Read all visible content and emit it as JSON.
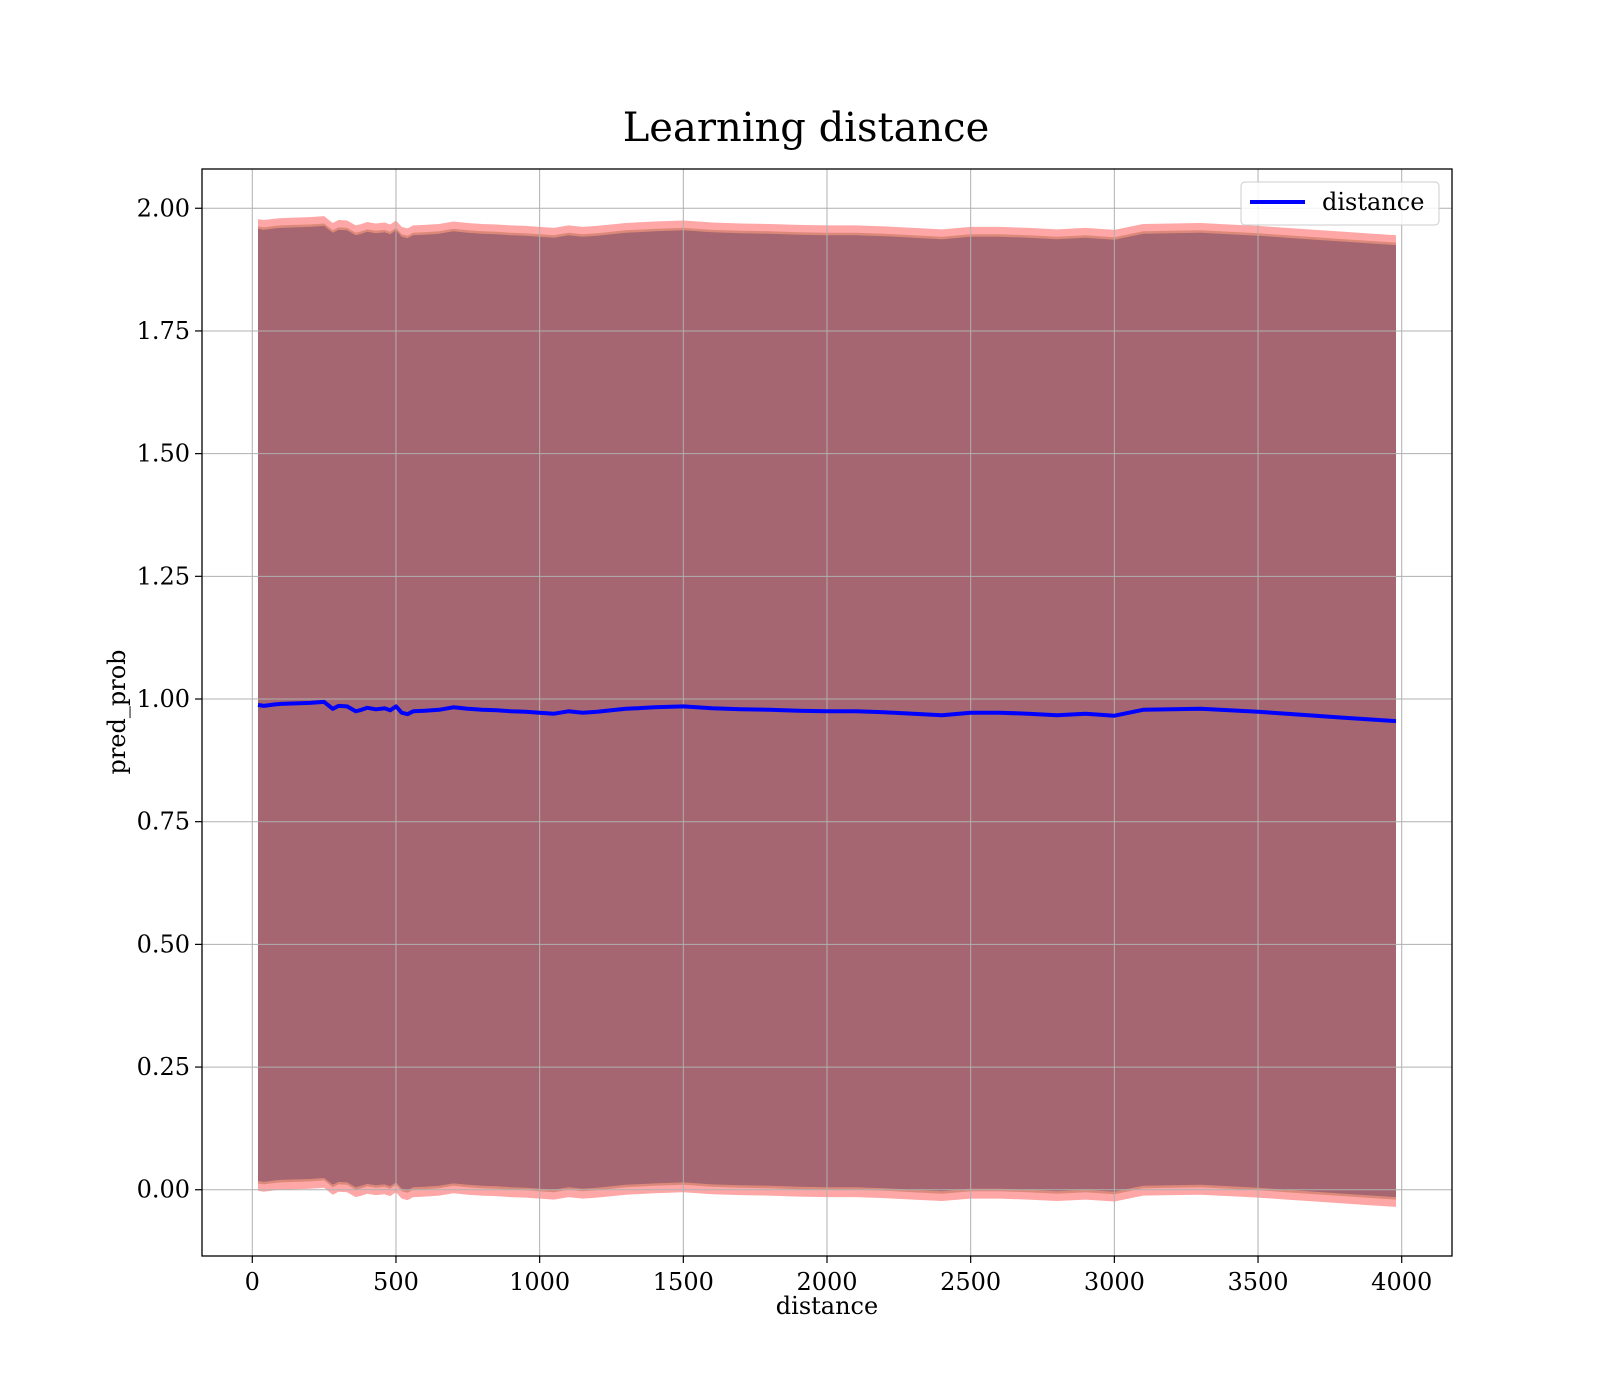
{
  "chart_data": {
    "type": "line",
    "title": "Learning distance",
    "xlabel": "distance",
    "ylabel": "pred_prob",
    "xlim": [
      -175,
      4175
    ],
    "ylim": [
      -0.135,
      2.08
    ],
    "grid": true,
    "legend_position": "top-right",
    "x_ticks": [
      0,
      500,
      1000,
      1500,
      2000,
      2500,
      3000,
      3500,
      4000
    ],
    "x_tick_labels": [
      "0",
      "500",
      "1000",
      "1500",
      "2000",
      "2500",
      "3000",
      "3500",
      "4000"
    ],
    "y_ticks": [
      0.0,
      0.25,
      0.5,
      0.75,
      1.0,
      1.25,
      1.5,
      1.75,
      2.0
    ],
    "y_tick_labels": [
      "0.00",
      "0.25",
      "0.50",
      "0.75",
      "1.00",
      "1.25",
      "1.50",
      "1.75",
      "2.00"
    ],
    "series": [
      {
        "name": "distance",
        "color": "#0000ff",
        "x": [
          20,
          40,
          80,
          100,
          150,
          200,
          250,
          280,
          300,
          330,
          360,
          380,
          400,
          430,
          460,
          480,
          500,
          520,
          540,
          560,
          600,
          650,
          700,
          750,
          800,
          850,
          900,
          950,
          1000,
          1050,
          1100,
          1150,
          1200,
          1300,
          1400,
          1500,
          1600,
          1700,
          1800,
          1900,
          2000,
          2100,
          2200,
          2300,
          2400,
          2500,
          2600,
          2700,
          2800,
          2900,
          3000,
          3100,
          3200,
          3300,
          3400,
          3500,
          3600,
          3700,
          3800,
          3900,
          3980
        ],
        "y": [
          0.988,
          0.986,
          0.989,
          0.99,
          0.991,
          0.992,
          0.994,
          0.98,
          0.986,
          0.985,
          0.975,
          0.978,
          0.982,
          0.979,
          0.981,
          0.977,
          0.985,
          0.972,
          0.969,
          0.975,
          0.976,
          0.978,
          0.983,
          0.98,
          0.978,
          0.977,
          0.975,
          0.974,
          0.972,
          0.97,
          0.975,
          0.972,
          0.974,
          0.98,
          0.983,
          0.985,
          0.981,
          0.979,
          0.978,
          0.976,
          0.975,
          0.975,
          0.973,
          0.97,
          0.967,
          0.972,
          0.972,
          0.97,
          0.967,
          0.97,
          0.966,
          0.978,
          0.979,
          0.98,
          0.977,
          0.974,
          0.97,
          0.966,
          0.962,
          0.958,
          0.955
        ]
      }
    ],
    "bands": [
      {
        "color": "#ff0000",
        "opacity": 0.35,
        "offset": 0.99
      },
      {
        "color": "#8b4513",
        "opacity": 0.3,
        "offset": 0.975
      },
      {
        "color": "#9b6070",
        "opacity": 0.85,
        "offset": 0.97
      }
    ]
  }
}
